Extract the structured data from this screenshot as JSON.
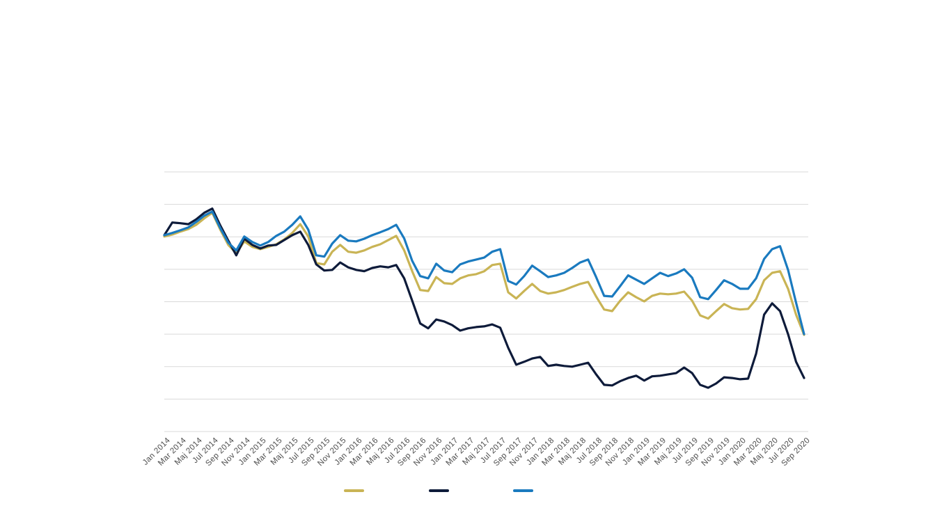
{
  "chart_data": {
    "type": "line",
    "title": "",
    "xlabel": "",
    "ylabel": "",
    "x_tick_labels": [
      "Jan 2014",
      "Mar 2014",
      "Maj 2014",
      "Jul 2014",
      "Sep 2014",
      "Nov 2014",
      "Jan 2015",
      "Mar 2015",
      "Maj 2015",
      "Jul 2015",
      "Sep 2015",
      "Nov 2015",
      "Jan 2016",
      "Mar 2016",
      "Maj 2016",
      "Jul 2016",
      "Sep 2016",
      "Nov 2016",
      "Jan 2017",
      "Mar 2017",
      "Maj 2017",
      "Jul 2017",
      "Sep 2017",
      "Nov 2017",
      "Jan 2018",
      "Mar 2018",
      "Maj 2018",
      "Jul 2018",
      "Sep 2018",
      "Nov 2018",
      "Jan 2019",
      "Mar 2019",
      "Maj 2019",
      "Jul 2019",
      "Sep 2019",
      "Nov 2019",
      "Jan 2020",
      "Mar 2020",
      "Maj 2020",
      "Jul 2020",
      "Sep 2020"
    ],
    "tick_every": 2,
    "points_per_series": 81,
    "ylim": [
      0,
      8
    ],
    "y_gridline_step": 1,
    "grid_on": true,
    "y_tick_labels_visible": false,
    "legend_position": "bottom",
    "legend_labels_visible": false,
    "grid_color": "#d9d9d9",
    "tick_label_color": "#4d4d4d",
    "series": [
      {
        "name": "gold",
        "color": "#c9b455",
        "values": [
          6.01,
          6.07,
          6.16,
          6.24,
          6.37,
          6.57,
          6.74,
          6.22,
          5.75,
          5.49,
          5.86,
          5.69,
          5.62,
          5.69,
          5.77,
          5.92,
          6.12,
          6.39,
          6.01,
          5.19,
          5.15,
          5.54,
          5.75,
          5.54,
          5.51,
          5.58,
          5.69,
          5.77,
          5.9,
          6.03,
          5.58,
          4.94,
          4.36,
          4.33,
          4.76,
          4.57,
          4.55,
          4.72,
          4.81,
          4.85,
          4.94,
          5.13,
          5.17,
          4.29,
          4.1,
          4.33,
          4.55,
          4.33,
          4.25,
          4.29,
          4.36,
          4.46,
          4.55,
          4.61,
          4.16,
          3.76,
          3.71,
          4.03,
          4.29,
          4.14,
          4.01,
          4.18,
          4.25,
          4.23,
          4.25,
          4.31,
          4.03,
          3.58,
          3.48,
          3.71,
          3.93,
          3.8,
          3.76,
          3.78,
          4.08,
          4.66,
          4.89,
          4.94,
          4.4,
          3.6,
          2.98
        ]
      },
      {
        "name": "navy",
        "color": "#0e1b3a",
        "values": [
          6.05,
          6.44,
          6.42,
          6.39,
          6.54,
          6.74,
          6.87,
          6.35,
          5.88,
          5.43,
          5.94,
          5.75,
          5.64,
          5.73,
          5.75,
          5.9,
          6.05,
          6.16,
          5.75,
          5.15,
          4.96,
          4.98,
          5.21,
          5.06,
          4.98,
          4.94,
          5.04,
          5.09,
          5.06,
          5.13,
          4.72,
          4.03,
          3.33,
          3.18,
          3.45,
          3.39,
          3.28,
          3.11,
          3.18,
          3.22,
          3.24,
          3.3,
          3.2,
          2.58,
          2.06,
          2.15,
          2.25,
          2.3,
          2.02,
          2.06,
          2.02,
          2.0,
          2.06,
          2.12,
          1.76,
          1.44,
          1.42,
          1.55,
          1.65,
          1.72,
          1.57,
          1.7,
          1.72,
          1.76,
          1.8,
          1.97,
          1.8,
          1.44,
          1.35,
          1.48,
          1.67,
          1.65,
          1.61,
          1.63,
          2.4,
          3.6,
          3.95,
          3.71,
          3.0,
          2.15,
          1.65
        ]
      },
      {
        "name": "blue",
        "color": "#1a7abf",
        "values": [
          6.05,
          6.12,
          6.2,
          6.29,
          6.46,
          6.65,
          6.78,
          6.27,
          5.82,
          5.58,
          6.01,
          5.84,
          5.73,
          5.84,
          6.03,
          6.16,
          6.37,
          6.63,
          6.22,
          5.43,
          5.39,
          5.79,
          6.05,
          5.88,
          5.86,
          5.94,
          6.05,
          6.14,
          6.24,
          6.37,
          5.95,
          5.26,
          4.79,
          4.72,
          5.17,
          4.96,
          4.91,
          5.15,
          5.24,
          5.3,
          5.36,
          5.54,
          5.62,
          4.64,
          4.53,
          4.79,
          5.11,
          4.94,
          4.76,
          4.81,
          4.89,
          5.04,
          5.21,
          5.3,
          4.76,
          4.18,
          4.16,
          4.48,
          4.81,
          4.68,
          4.55,
          4.72,
          4.89,
          4.79,
          4.87,
          5.0,
          4.74,
          4.14,
          4.08,
          4.36,
          4.66,
          4.55,
          4.4,
          4.4,
          4.72,
          5.32,
          5.62,
          5.71,
          4.98,
          3.97,
          3.0
        ]
      }
    ]
  }
}
